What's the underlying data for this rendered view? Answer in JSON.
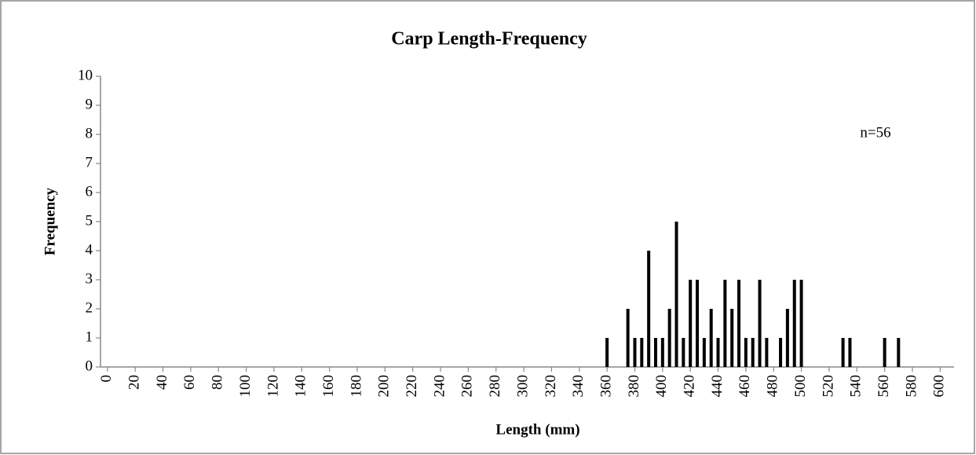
{
  "chart_data": {
    "type": "bar",
    "title": "Carp Length-Frequency",
    "x_label": "Length (mm)",
    "y_label": "Frequency",
    "annotation": "n=56",
    "x": [
      360,
      375,
      380,
      385,
      390,
      395,
      400,
      405,
      410,
      415,
      420,
      425,
      430,
      435,
      440,
      445,
      450,
      455,
      460,
      465,
      470,
      475,
      485,
      490,
      495,
      500,
      530,
      535,
      560,
      570
    ],
    "values": [
      1,
      2,
      1,
      1,
      4,
      1,
      1,
      2,
      5,
      1,
      3,
      3,
      1,
      2,
      1,
      3,
      2,
      3,
      1,
      1,
      3,
      1,
      1,
      2,
      3,
      3,
      1,
      1,
      1,
      1
    ],
    "color": "#000000",
    "xlim": [
      -5,
      610
    ],
    "xticks": [
      0,
      20,
      40,
      60,
      80,
      100,
      120,
      140,
      160,
      180,
      200,
      220,
      240,
      260,
      280,
      300,
      320,
      340,
      360,
      380,
      400,
      420,
      440,
      460,
      480,
      500,
      520,
      540,
      560,
      580,
      600
    ],
    "ylim": [
      0,
      10
    ],
    "yticks": [
      0,
      1,
      2,
      3,
      4,
      5,
      6,
      7,
      8,
      9,
      10
    ],
    "grid": false
  }
}
